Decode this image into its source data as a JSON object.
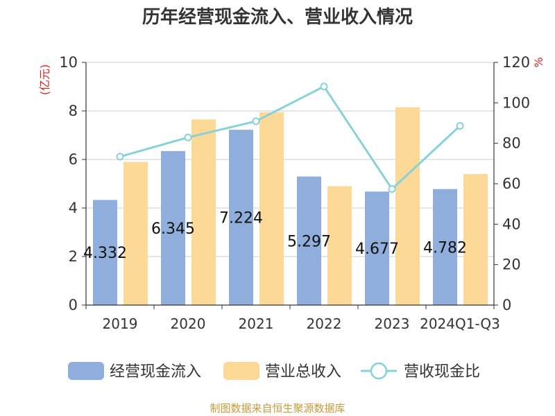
{
  "title": "历年经营现金流入、营业收入情况",
  "source": "制图数据来自恒生聚源数据库",
  "colors": {
    "cash_inflow": "#8faedb",
    "revenue": "#fdd998",
    "ratio": "#86d2d8",
    "unit_label": "#dd2222",
    "source": "#c59a3a",
    "grid": "#cccccc",
    "axis": "#333333"
  },
  "chart_data": {
    "type": "bar",
    "title": "历年经营现金流入、营业收入情况",
    "categories": [
      "2019",
      "2020",
      "2021",
      "2022",
      "2023",
      "2024Q1-Q3"
    ],
    "y_left": {
      "label": "(亿元)",
      "range": [
        0,
        10
      ],
      "ticks": [
        0,
        2,
        4,
        6,
        8,
        10
      ]
    },
    "y_right": {
      "label": "%",
      "range": [
        0,
        120
      ],
      "ticks": [
        0,
        20,
        40,
        60,
        80,
        100,
        120
      ]
    },
    "grid": true,
    "legend": "bottom",
    "series": [
      {
        "name": "经营现金流入",
        "type": "bar",
        "axis": "left",
        "values": [
          4.332,
          6.345,
          7.224,
          5.297,
          4.677,
          4.782
        ],
        "labels": [
          "4.332",
          "6.345",
          "7.224",
          "5.297",
          "4.677",
          "4.782"
        ]
      },
      {
        "name": "营业总收入",
        "type": "bar",
        "axis": "left",
        "values": [
          5.9,
          7.65,
          7.95,
          4.9,
          8.15,
          5.4
        ]
      },
      {
        "name": "营收现金比",
        "type": "line",
        "axis": "right",
        "values": [
          73.4,
          82.9,
          90.9,
          108.1,
          57.4,
          88.6
        ]
      }
    ]
  }
}
